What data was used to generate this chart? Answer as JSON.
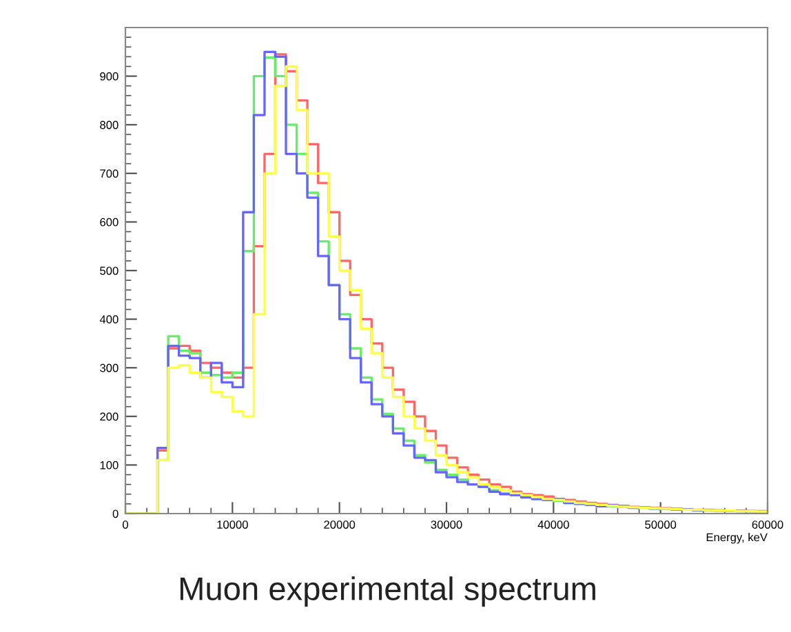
{
  "chart_data": {
    "type": "histogram",
    "title": "Muon experimental spectrum",
    "xlabel": "Energy, keV",
    "bins": [
      0,
      1000,
      2000,
      3000,
      4000,
      5000,
      6000,
      7000,
      8000,
      9000,
      10000,
      11000,
      12000,
      13000,
      14000,
      15000,
      16000,
      17000,
      18000,
      19000,
      20000,
      21000,
      22000,
      23000,
      24000,
      25000,
      26000,
      27000,
      28000,
      29000,
      30000,
      31000,
      32000,
      33000,
      34000,
      35000,
      36000,
      37000,
      38000,
      39000,
      40000,
      41000,
      42000,
      43000,
      44000,
      45000,
      46000,
      47000,
      48000,
      49000,
      50000,
      51000,
      52000,
      53000,
      54000,
      55000,
      56000,
      57000,
      58000,
      59000,
      60000
    ],
    "series": [
      {
        "color": "#ff6666",
        "values": [
          0,
          0,
          0,
          130,
          340,
          345,
          335,
          310,
          300,
          290,
          280,
          300,
          550,
          740,
          945,
          910,
          850,
          760,
          680,
          620,
          520,
          450,
          400,
          350,
          300,
          255,
          230,
          200,
          170,
          140,
          115,
          95,
          80,
          70,
          60,
          55,
          45,
          40,
          38,
          35,
          30,
          28,
          25,
          22,
          20,
          18,
          16,
          14,
          13,
          12,
          11,
          10,
          9,
          8,
          8,
          7,
          6,
          6,
          5,
          5
        ]
      },
      {
        "color": "#66ee66",
        "values": [
          0,
          0,
          0,
          110,
          365,
          335,
          330,
          290,
          285,
          280,
          290,
          540,
          900,
          938,
          900,
          800,
          740,
          660,
          560,
          470,
          410,
          340,
          280,
          235,
          205,
          175,
          150,
          120,
          105,
          90,
          80,
          70,
          60,
          55,
          48,
          42,
          38,
          34,
          30,
          28,
          26,
          22,
          20,
          18,
          16,
          15,
          14,
          12,
          12,
          10,
          10,
          9,
          8,
          7,
          7,
          6,
          6,
          5,
          5,
          4
        ]
      },
      {
        "color": "#6666ff",
        "values": [
          0,
          0,
          0,
          135,
          345,
          325,
          320,
          280,
          310,
          270,
          260,
          620,
          820,
          950,
          940,
          740,
          700,
          650,
          530,
          470,
          400,
          320,
          270,
          225,
          200,
          165,
          140,
          115,
          110,
          85,
          75,
          65,
          60,
          55,
          45,
          40,
          38,
          33,
          30,
          28,
          30,
          22,
          20,
          18,
          15,
          17,
          14,
          12,
          13,
          10,
          10,
          8,
          9,
          7,
          7,
          6,
          6,
          5,
          5,
          4
        ]
      },
      {
        "color": "#ffff44",
        "values": [
          0,
          0,
          0,
          110,
          300,
          305,
          290,
          280,
          250,
          240,
          210,
          200,
          410,
          700,
          880,
          920,
          830,
          700,
          700,
          570,
          500,
          460,
          380,
          330,
          280,
          240,
          200,
          175,
          150,
          120,
          100,
          85,
          75,
          60,
          55,
          48,
          42,
          38,
          34,
          30,
          28,
          25,
          22,
          20,
          18,
          16,
          14,
          13,
          12,
          11,
          10,
          9,
          8,
          8,
          7,
          6,
          6,
          5,
          5,
          4
        ]
      }
    ],
    "xlim": [
      0,
      60000
    ],
    "ylim": [
      0,
      1000
    ],
    "xticks": [
      0,
      10000,
      20000,
      30000,
      40000,
      50000,
      60000
    ],
    "yticks": [
      0,
      100,
      200,
      300,
      400,
      500,
      600,
      700,
      800,
      900
    ],
    "grid": false
  }
}
